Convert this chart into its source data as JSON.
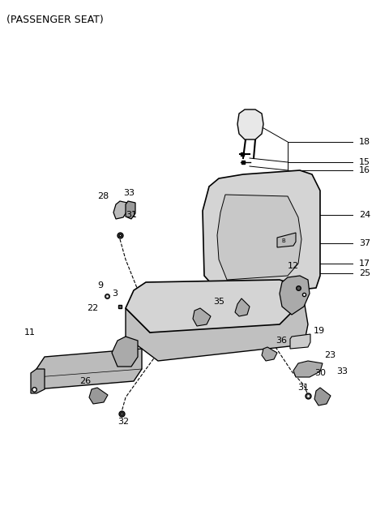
{
  "title": "(PASSENGER SEAT)",
  "bg_color": "#ffffff",
  "line_color": "#000000",
  "gray_fill": "#d4d4d4",
  "dark_gray": "#aaaaaa",
  "light_gray": "#e8e8e8",
  "figsize": [
    4.8,
    6.56
  ],
  "dpi": 100
}
